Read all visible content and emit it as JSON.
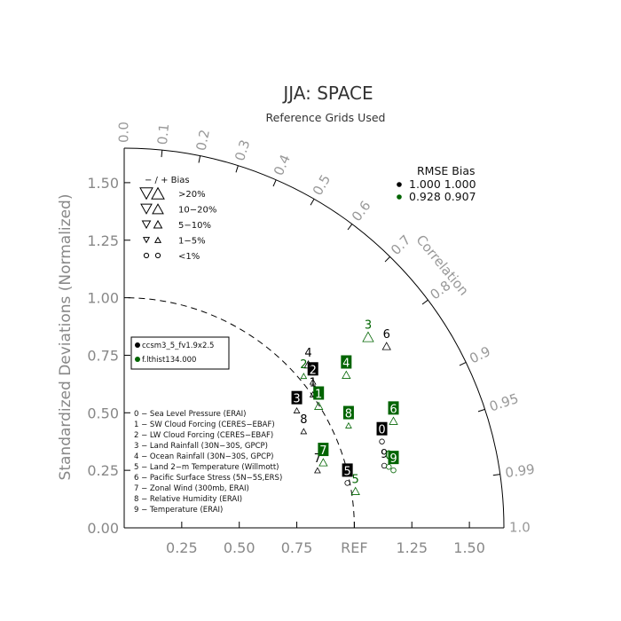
{
  "chart_data": {
    "type": "scatter",
    "subtype": "taylor-diagram",
    "title": "JJA: SPACE",
    "subtitle": "Reference Grids Used",
    "ylabel": "Standardized Deviations (Normalized)",
    "correlation_label": "Correlation",
    "ref_label": "REF",
    "x_tick_labels": [
      "0.25",
      "0.50",
      "0.75",
      "1.25",
      "1.50"
    ],
    "x_ticks": [
      0.25,
      0.5,
      0.75,
      1.25,
      1.5
    ],
    "y_tick_labels": [
      "0.00",
      "0.25",
      "0.50",
      "0.75",
      "1.00",
      "1.25",
      "1.50"
    ],
    "y_ticks": [
      0,
      0.25,
      0.5,
      0.75,
      1.0,
      1.25,
      1.5
    ],
    "correlation_tick_labels": [
      "0.0",
      "0.1",
      "0.2",
      "0.3",
      "0.4",
      "0.5",
      "0.6",
      "0.7",
      "0.8",
      "0.9",
      "0.95",
      "0.99",
      "1.0"
    ],
    "correlation_ticks": [
      0.0,
      0.1,
      0.2,
      0.3,
      0.4,
      0.5,
      0.6,
      0.7,
      0.8,
      0.9,
      0.95,
      0.99,
      1.0
    ],
    "std_max": 1.65,
    "ref_std": 1.0,
    "bias_legend": {
      "header": "−  /  +     Bias",
      "rows": [
        ">20%",
        "10−20%",
        "5−10%",
        "1−5%",
        "<1%"
      ]
    },
    "rmse_header": "RMSE  Bias",
    "rmse_rows": [
      {
        "color": "#000000",
        "rmse": "1.000",
        "bias": "1.000"
      },
      {
        "color": "#006400",
        "rmse": "0.928",
        "bias": "0.907"
      }
    ],
    "case_legend": [
      "ccsm3_5_fv1.9x2.5",
      "f.lthist134.000"
    ],
    "variable_legend": [
      "0 − Sea Level Pressure (ERAI)",
      "1 − SW Cloud Forcing (CERES−EBAF)",
      "2 − LW Cloud Forcing (CERES−EBAF)",
      "3 − Land Rainfall (30N−30S, GPCP)",
      "4 − Ocean Rainfall (30N−30S, GPCP)",
      "5 − Land 2−m Temperature (Willmott)",
      "6 − Pacific Surface Stress (5N−5S,ERS)",
      "7 − Zonal Wind (300mb, ERAI)",
      "8 − Relative Humidity (ERAI)",
      "9 − Temperature (ERAI)"
    ],
    "series": [
      {
        "name": "ccsm3_5_fv1.9x2.5",
        "color": "#000000",
        "points": [
          {
            "id": "0",
            "x": 1.12,
            "y": 0.375,
            "boxed": true,
            "bias": "<1%"
          },
          {
            "id": "1",
            "x": 0.82,
            "y": 0.58,
            "boxed": false,
            "bias": "1-5%"
          },
          {
            "id": "2",
            "x": 0.82,
            "y": 0.635,
            "boxed": true,
            "bias": "1-5%"
          },
          {
            "id": "3",
            "x": 0.75,
            "y": 0.51,
            "boxed": true,
            "bias": "1-5%"
          },
          {
            "id": "4",
            "x": 0.8,
            "y": 0.71,
            "boxed": false,
            "bias": "5-10%"
          },
          {
            "id": "5",
            "x": 0.97,
            "y": 0.195,
            "boxed": true,
            "bias": "<1%"
          },
          {
            "id": "6",
            "x": 1.14,
            "y": 0.79,
            "boxed": false,
            "bias": "5-10%"
          },
          {
            "id": "7",
            "x": 0.84,
            "y": 0.25,
            "boxed": false,
            "bias": "1-5%"
          },
          {
            "id": "8",
            "x": 0.78,
            "y": 0.42,
            "boxed": false,
            "bias": "1-5%"
          },
          {
            "id": "9",
            "x": 1.13,
            "y": 0.27,
            "boxed": false,
            "bias": "<1%"
          }
        ]
      },
      {
        "name": "f.lthist134.000",
        "color": "#006400",
        "points": [
          {
            "id": "0",
            "x": 1.15,
            "y": 0.265,
            "boxed": false,
            "bias": "<1%"
          },
          {
            "id": "1",
            "x": 0.845,
            "y": 0.53,
            "boxed": true,
            "bias": "5-10%"
          },
          {
            "id": "2",
            "x": 0.78,
            "y": 0.66,
            "boxed": false,
            "bias": "1-5%"
          },
          {
            "id": "3",
            "x": 1.06,
            "y": 0.83,
            "boxed": false,
            "bias": "10-20%"
          },
          {
            "id": "4",
            "x": 0.965,
            "y": 0.665,
            "boxed": true,
            "bias": "5-10%"
          },
          {
            "id": "5",
            "x": 1.005,
            "y": 0.16,
            "boxed": false,
            "bias": "5-10%"
          },
          {
            "id": "6",
            "x": 1.17,
            "y": 0.465,
            "boxed": true,
            "bias": "5-10%"
          },
          {
            "id": "7",
            "x": 0.865,
            "y": 0.285,
            "boxed": true,
            "bias": "5-10%"
          },
          {
            "id": "8",
            "x": 0.975,
            "y": 0.445,
            "boxed": true,
            "bias": "1-5%"
          },
          {
            "id": "9",
            "x": 1.17,
            "y": 0.25,
            "boxed": true,
            "bias": "<1%"
          }
        ]
      }
    ]
  }
}
